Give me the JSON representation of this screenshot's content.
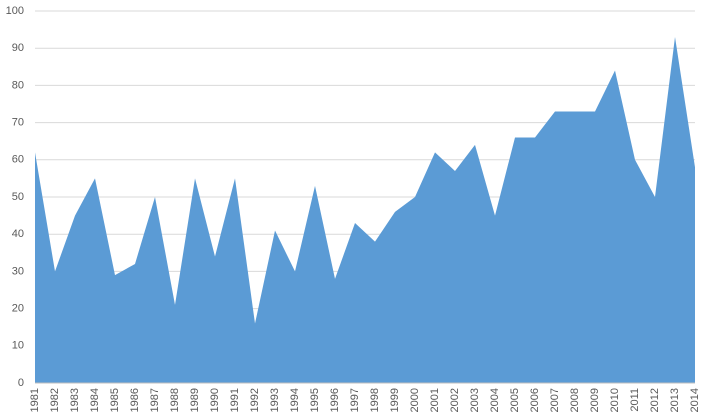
{
  "chart_data": {
    "type": "area",
    "color": "#5b9bd5",
    "grid": true,
    "categories": [
      "1981",
      "1982",
      "1983",
      "1984",
      "1985",
      "1986",
      "1987",
      "1988",
      "1989",
      "1990",
      "1991",
      "1992",
      "1993",
      "1994",
      "1995",
      "1996",
      "1997",
      "1998",
      "1999",
      "2000",
      "2001",
      "2002",
      "2003",
      "2004",
      "2005",
      "2006",
      "2007",
      "2008",
      "2009",
      "2010",
      "2011",
      "2012",
      "2013",
      "2014"
    ],
    "values": [
      62,
      30,
      45,
      55,
      29,
      32,
      50,
      21,
      55,
      34,
      55,
      16,
      41,
      30,
      53,
      28,
      43,
      38,
      46,
      50,
      62,
      57,
      64,
      45,
      66,
      66,
      73,
      73,
      73,
      84,
      60,
      50,
      93,
      58
    ],
    "ylim": [
      0,
      100
    ],
    "yticks": [
      0,
      10,
      20,
      30,
      40,
      50,
      60,
      70,
      80,
      90,
      100
    ]
  }
}
